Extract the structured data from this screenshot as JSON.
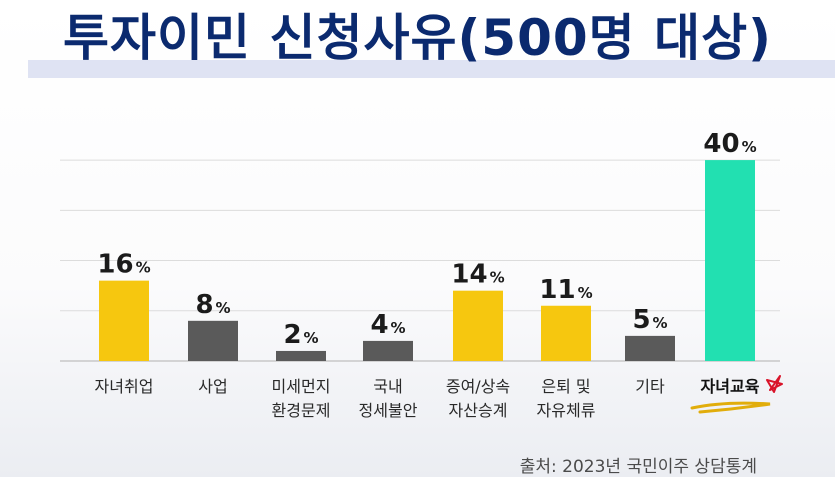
{
  "header": {
    "title": "투자이민 신청사유(500명 대상)"
  },
  "chart_data": {
    "type": "bar",
    "categories": [
      [
        "자녀취업"
      ],
      [
        "사업"
      ],
      [
        "미세먼지",
        "환경문제"
      ],
      [
        "국내",
        "정세불안"
      ],
      [
        "증여/상속",
        "자산승계"
      ],
      [
        "은퇴 및",
        "자유체류"
      ],
      [
        "기타"
      ],
      [
        "자녀교육"
      ]
    ],
    "values": [
      16,
      8,
      2,
      4,
      14,
      11,
      5,
      40
    ],
    "value_suffix": "%",
    "highlight_category": 7,
    "ylim": [
      0,
      44
    ],
    "grid": true,
    "colors": {
      "yellow": "#f6c70f",
      "gray": "#5a5a5a",
      "teal": "#22e0b1",
      "underline": "#e1ad0b",
      "mark": "#d9142a"
    },
    "bar_colors": [
      "yellow",
      "gray",
      "gray",
      "gray",
      "yellow",
      "yellow",
      "gray",
      "teal"
    ]
  },
  "footer": {
    "source": "출처: 2023년 국민이주 상담통계"
  }
}
